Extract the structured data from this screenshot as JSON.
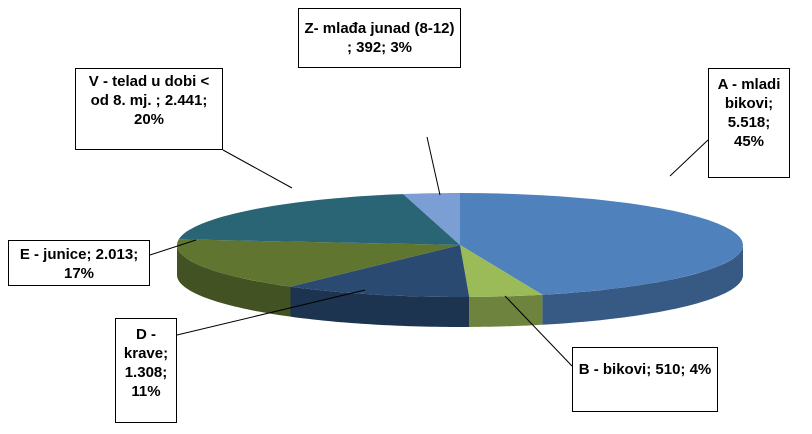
{
  "chart_data": {
    "type": "pie",
    "three_d": true,
    "labels": [
      "A - mladi bikovi; 5.518; 45%",
      "B - bikovi; 510; 4%",
      "D - krave; 1.308; 11%",
      "E - junice; 2.013; 17%",
      "V - telad u dobi < od 8. mj. ; 2.441; 20%",
      "Z- mlađa junad (8-12) ; 392; 3%"
    ],
    "values": [
      5518,
      510,
      1308,
      2013,
      2441,
      392
    ],
    "percents": [
      45,
      4,
      11,
      17,
      20,
      3
    ],
    "colors": [
      "#4f81bd",
      "#9bbb59",
      "#2a4a72",
      "#5f7530",
      "#2a6576",
      "#7b9fd4"
    ]
  }
}
